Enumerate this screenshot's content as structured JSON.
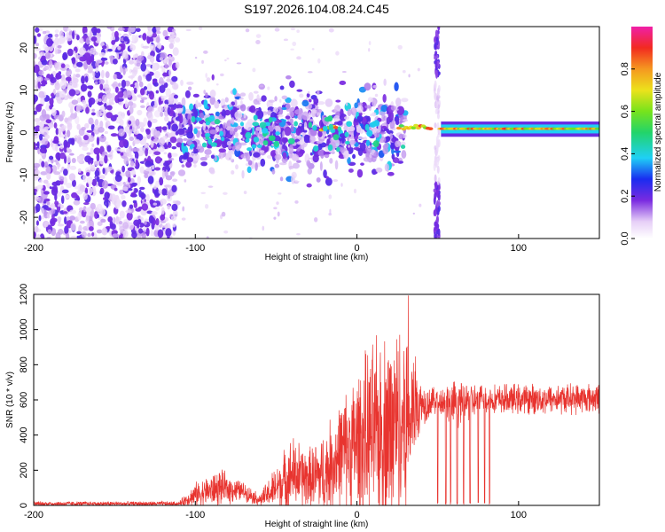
{
  "figure": {
    "title": "S197.2026.104.08.24.C45"
  },
  "chart_data": [
    {
      "type": "heatmap",
      "name": "spectrogram",
      "xlabel": "Height of straight line (km)",
      "ylabel": "Frequency (Hz)",
      "xlim": [
        -200,
        150
      ],
      "ylim": [
        -25,
        25
      ],
      "x_ticks": [
        -200,
        -100,
        0,
        100
      ],
      "x_tick_labels": [
        "-200",
        "-100",
        "0",
        "100"
      ],
      "y_ticks": [
        20,
        10,
        0,
        -10,
        -20
      ],
      "y_tick_labels": [
        "20",
        "10",
        "0",
        "-10",
        "-20"
      ],
      "colorbar": {
        "label": "Normalized spectral amplitude",
        "range": [
          0.0,
          1.0
        ],
        "ticks": [
          0.0,
          0.2,
          0.4,
          0.6,
          0.8
        ],
        "tick_labels": [
          "0.0",
          "0.2",
          "0.4",
          "0.6",
          "0.8"
        ],
        "colormap": "rainbow (white→purple→blue→cyan→green→yellow→red→magenta)"
      },
      "regions": [
        {
          "x_range": [
            -200,
            -110
          ],
          "description": "noise",
          "freq_range": [
            -25,
            25
          ],
          "amplitude": 0.1
        },
        {
          "x_range": [
            -110,
            30
          ],
          "description": "scattered energy",
          "freq_range": [
            -10,
            10
          ],
          "amplitude": 0.3
        },
        {
          "x_range": [
            -20,
            150
          ],
          "description": "narrow band",
          "freq_center": 1,
          "amplitude": 0.85
        },
        {
          "x_range": [
            48,
            51
          ],
          "description": "vertical gap stripe",
          "freq_range": [
            -25,
            25
          ],
          "amplitude": 0.2
        }
      ]
    },
    {
      "type": "line",
      "name": "snr",
      "xlabel": "Height of straight line (km)",
      "ylabel": "SNR (10 * v/v)",
      "xlim": [
        -200,
        150
      ],
      "ylim": [
        0,
        1200
      ],
      "x_ticks": [
        -200,
        -100,
        0,
        100
      ],
      "x_tick_labels": [
        "-200",
        "-100",
        "0",
        "100"
      ],
      "y_ticks": [
        0,
        200,
        400,
        600,
        800,
        1000,
        1200
      ],
      "y_tick_labels": [
        "0",
        "200",
        "400",
        "600",
        "800",
        "1000",
        "1200"
      ],
      "color": "#e8342f",
      "envelope": [
        {
          "x": -200,
          "base": 10,
          "amp": 15
        },
        {
          "x": -110,
          "base": 10,
          "amp": 15
        },
        {
          "x": -100,
          "base": 60,
          "amp": 80
        },
        {
          "x": -85,
          "base": 100,
          "amp": 120
        },
        {
          "x": -70,
          "base": 80,
          "amp": 60
        },
        {
          "x": -60,
          "base": 30,
          "amp": 40
        },
        {
          "x": -50,
          "base": 100,
          "amp": 150
        },
        {
          "x": -40,
          "base": 180,
          "amp": 250
        },
        {
          "x": -30,
          "base": 150,
          "amp": 200
        },
        {
          "x": -20,
          "base": 180,
          "amp": 280
        },
        {
          "x": -10,
          "base": 300,
          "amp": 350
        },
        {
          "x": 0,
          "base": 350,
          "amp": 500
        },
        {
          "x": 10,
          "base": 400,
          "amp": 600
        },
        {
          "x": 20,
          "base": 450,
          "amp": 650
        },
        {
          "x": 30,
          "base": 500,
          "amp": 650
        },
        {
          "x": 40,
          "base": 580,
          "amp": 150
        },
        {
          "x": 50,
          "base": 600,
          "amp": 80
        },
        {
          "x": 60,
          "base": 580,
          "amp": 150
        },
        {
          "x": 80,
          "base": 600,
          "amp": 100
        },
        {
          "x": 150,
          "base": 610,
          "amp": 100
        }
      ],
      "dropouts": [
        50,
        55,
        58,
        62,
        66,
        70,
        75,
        79,
        82
      ]
    }
  ]
}
